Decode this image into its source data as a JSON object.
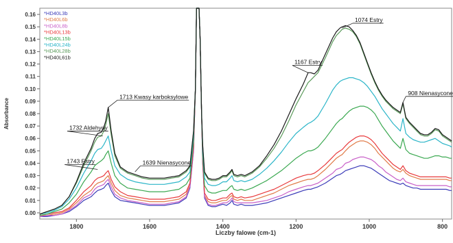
{
  "chart_data": {
    "type": "line",
    "xlabel": "Liczby falowe (cm-1)",
    "ylabel": "Absorbance",
    "xlim": [
      1900,
      775
    ],
    "ylim": [
      -0.005,
      0.165
    ],
    "x_reversed": true,
    "grid": false,
    "legend_position": "top-left",
    "x_ticks": [
      1800,
      1600,
      1400,
      1200,
      1000,
      800
    ],
    "y_ticks": [
      0.0,
      0.01,
      0.02,
      0.03,
      0.04,
      0.05,
      0.06,
      0.07,
      0.08,
      0.09,
      0.1,
      0.11,
      0.12,
      0.13,
      0.14,
      0.15,
      0.16
    ],
    "y_tick_labels": [
      "0.00",
      "0.01",
      "0.02",
      "0.03",
      "0.04",
      "0.05",
      "0.06",
      "0.07",
      "0.08",
      "0.09",
      "0.10",
      "0.11",
      "0.12",
      "0.13",
      "0.14",
      "0.15",
      "0.16"
    ],
    "annotations": [
      {
        "text": "1713 Kwasy karboksylowe",
        "x": 1713,
        "y": 0.085,
        "ty": 0.092,
        "tx": 1688
      },
      {
        "text": "1732 Aldehydy",
        "x": 1728,
        "y": 0.062,
        "ty": 0.067,
        "tx": 1825
      },
      {
        "text": "1743 Estry",
        "x": 1742,
        "y": 0.035,
        "ty": 0.04,
        "tx": 1832
      },
      {
        "text": "1639 Nienasycone",
        "x": 1640,
        "y": 0.033,
        "ty": 0.039,
        "tx": 1625
      },
      {
        "text": "1167 Estry",
        "x": 1167,
        "y": 0.113,
        "ty": 0.12,
        "tx": 1210
      },
      {
        "text": "1074 Estry",
        "x": 1074,
        "y": 0.149,
        "ty": 0.154,
        "tx": 1045
      },
      {
        "text": "908 Nienasycone",
        "x": 908,
        "y": 0.089,
        "ty": 0.095,
        "tx": 900
      }
    ],
    "x": [
      1900,
      1880,
      1860,
      1840,
      1820,
      1800,
      1780,
      1760,
      1750,
      1742,
      1732,
      1725,
      1720,
      1713,
      1705,
      1695,
      1680,
      1660,
      1640,
      1620,
      1600,
      1580,
      1560,
      1540,
      1520,
      1500,
      1490,
      1480,
      1475,
      1472,
      1468,
      1465,
      1462,
      1458,
      1455,
      1450,
      1440,
      1430,
      1420,
      1410,
      1400,
      1390,
      1380,
      1375,
      1370,
      1360,
      1350,
      1340,
      1320,
      1300,
      1280,
      1260,
      1240,
      1220,
      1200,
      1180,
      1167,
      1160,
      1150,
      1140,
      1120,
      1100,
      1090,
      1080,
      1074,
      1065,
      1055,
      1045,
      1035,
      1025,
      1015,
      1005,
      995,
      985,
      975,
      965,
      955,
      945,
      935,
      925,
      915,
      908,
      900,
      890,
      880,
      870,
      860,
      850,
      840,
      830,
      820,
      810,
      800,
      790,
      780,
      775
    ],
    "series": [
      {
        "name": "HD40L3b",
        "color": "#3b3bb8",
        "values": [
          -0.003,
          -0.003,
          -0.002,
          -0.001,
          0.001,
          0.005,
          0.01,
          0.013,
          0.016,
          0.018,
          0.019,
          0.02,
          0.022,
          0.024,
          0.018,
          0.013,
          0.01,
          0.009,
          0.008,
          0.007,
          0.006,
          0.006,
          0.006,
          0.007,
          0.008,
          0.012,
          0.02,
          0.05,
          0.1,
          0.17,
          0.17,
          0.17,
          0.14,
          0.08,
          0.04,
          0.012,
          0.006,
          0.005,
          0.005,
          0.006,
          0.007,
          0.006,
          0.008,
          0.01,
          0.007,
          0.006,
          0.007,
          0.006,
          0.006,
          0.007,
          0.008,
          0.01,
          0.012,
          0.014,
          0.016,
          0.018,
          0.019,
          0.019,
          0.02,
          0.021,
          0.024,
          0.028,
          0.03,
          0.031,
          0.032,
          0.034,
          0.035,
          0.036,
          0.037,
          0.038,
          0.038,
          0.037,
          0.036,
          0.034,
          0.032,
          0.03,
          0.028,
          0.026,
          0.025,
          0.024,
          0.023,
          0.024,
          0.022,
          0.021,
          0.02,
          0.02,
          0.019,
          0.019,
          0.019,
          0.019,
          0.019,
          0.019,
          0.019,
          0.019,
          0.018,
          0.018
        ]
      },
      {
        "name": "HD40L6b",
        "color": "#e07b48",
        "values": [
          -0.002,
          -0.002,
          -0.001,
          0.0,
          0.003,
          0.008,
          0.014,
          0.018,
          0.022,
          0.024,
          0.025,
          0.026,
          0.028,
          0.03,
          0.024,
          0.018,
          0.014,
          0.012,
          0.011,
          0.01,
          0.009,
          0.009,
          0.009,
          0.01,
          0.011,
          0.015,
          0.022,
          0.052,
          0.1,
          0.17,
          0.17,
          0.17,
          0.14,
          0.08,
          0.042,
          0.014,
          0.009,
          0.008,
          0.008,
          0.009,
          0.01,
          0.01,
          0.013,
          0.014,
          0.011,
          0.01,
          0.011,
          0.01,
          0.01,
          0.012,
          0.014,
          0.016,
          0.019,
          0.022,
          0.024,
          0.026,
          0.027,
          0.027,
          0.028,
          0.03,
          0.035,
          0.041,
          0.044,
          0.046,
          0.047,
          0.05,
          0.053,
          0.055,
          0.057,
          0.058,
          0.058,
          0.057,
          0.055,
          0.052,
          0.048,
          0.045,
          0.042,
          0.039,
          0.036,
          0.034,
          0.033,
          0.035,
          0.032,
          0.03,
          0.029,
          0.028,
          0.027,
          0.027,
          0.027,
          0.027,
          0.027,
          0.027,
          0.027,
          0.027,
          0.026,
          0.026
        ]
      },
      {
        "name": "HD40L8b",
        "color": "#c85fc8",
        "values": [
          -0.003,
          -0.002,
          -0.002,
          -0.001,
          0.002,
          0.006,
          0.012,
          0.015,
          0.019,
          0.021,
          0.022,
          0.023,
          0.025,
          0.027,
          0.021,
          0.015,
          0.012,
          0.01,
          0.009,
          0.008,
          0.007,
          0.007,
          0.007,
          0.008,
          0.009,
          0.013,
          0.021,
          0.051,
          0.1,
          0.17,
          0.17,
          0.17,
          0.14,
          0.08,
          0.041,
          0.013,
          0.007,
          0.006,
          0.006,
          0.007,
          0.008,
          0.008,
          0.01,
          0.012,
          0.009,
          0.008,
          0.008,
          0.008,
          0.008,
          0.009,
          0.01,
          0.012,
          0.014,
          0.017,
          0.019,
          0.021,
          0.022,
          0.022,
          0.023,
          0.024,
          0.028,
          0.032,
          0.035,
          0.036,
          0.037,
          0.04,
          0.041,
          0.043,
          0.044,
          0.045,
          0.045,
          0.044,
          0.043,
          0.041,
          0.038,
          0.036,
          0.033,
          0.031,
          0.029,
          0.027,
          0.026,
          0.028,
          0.025,
          0.024,
          0.023,
          0.022,
          0.022,
          0.022,
          0.022,
          0.022,
          0.022,
          0.022,
          0.022,
          0.022,
          0.021,
          0.021
        ]
      },
      {
        "name": "HD40L13b",
        "color": "#e8383a",
        "values": [
          -0.002,
          -0.001,
          0.0,
          0.001,
          0.004,
          0.01,
          0.017,
          0.022,
          0.026,
          0.028,
          0.029,
          0.03,
          0.032,
          0.034,
          0.027,
          0.021,
          0.017,
          0.014,
          0.013,
          0.012,
          0.011,
          0.011,
          0.011,
          0.012,
          0.013,
          0.017,
          0.024,
          0.054,
          0.1,
          0.17,
          0.17,
          0.17,
          0.14,
          0.08,
          0.043,
          0.016,
          0.011,
          0.01,
          0.01,
          0.011,
          0.012,
          0.012,
          0.015,
          0.016,
          0.013,
          0.012,
          0.013,
          0.012,
          0.013,
          0.015,
          0.017,
          0.019,
          0.022,
          0.025,
          0.028,
          0.03,
          0.031,
          0.031,
          0.032,
          0.034,
          0.039,
          0.045,
          0.048,
          0.05,
          0.051,
          0.054,
          0.057,
          0.059,
          0.061,
          0.062,
          0.062,
          0.061,
          0.059,
          0.056,
          0.052,
          0.048,
          0.045,
          0.042,
          0.039,
          0.037,
          0.035,
          0.038,
          0.034,
          0.032,
          0.031,
          0.03,
          0.029,
          0.029,
          0.029,
          0.029,
          0.029,
          0.029,
          0.029,
          0.029,
          0.028,
          0.028
        ]
      },
      {
        "name": "HD40L15b",
        "color": "#3aa850",
        "values": [
          -0.002,
          -0.001,
          0.001,
          0.003,
          0.008,
          0.015,
          0.025,
          0.033,
          0.038,
          0.04,
          0.042,
          0.044,
          0.047,
          0.05,
          0.04,
          0.03,
          0.024,
          0.02,
          0.019,
          0.018,
          0.017,
          0.017,
          0.017,
          0.018,
          0.019,
          0.023,
          0.028,
          0.058,
          0.1,
          0.17,
          0.17,
          0.17,
          0.14,
          0.08,
          0.046,
          0.022,
          0.017,
          0.016,
          0.016,
          0.017,
          0.018,
          0.018,
          0.021,
          0.022,
          0.019,
          0.018,
          0.019,
          0.018,
          0.02,
          0.023,
          0.026,
          0.03,
          0.034,
          0.039,
          0.044,
          0.048,
          0.05,
          0.05,
          0.051,
          0.053,
          0.06,
          0.068,
          0.072,
          0.075,
          0.076,
          0.079,
          0.082,
          0.084,
          0.085,
          0.086,
          0.086,
          0.085,
          0.083,
          0.08,
          0.075,
          0.07,
          0.066,
          0.062,
          0.058,
          0.055,
          0.052,
          0.06,
          0.051,
          0.048,
          0.047,
          0.046,
          0.045,
          0.044,
          0.044,
          0.045,
          0.046,
          0.046,
          0.045,
          0.045,
          0.044,
          0.044
        ]
      },
      {
        "name": "HD40L24b",
        "color": "#2ab5c8",
        "values": [
          -0.001,
          0.0,
          0.002,
          0.005,
          0.011,
          0.02,
          0.032,
          0.042,
          0.048,
          0.051,
          0.052,
          0.055,
          0.058,
          0.062,
          0.05,
          0.038,
          0.031,
          0.027,
          0.025,
          0.024,
          0.023,
          0.023,
          0.023,
          0.024,
          0.025,
          0.029,
          0.033,
          0.062,
          0.1,
          0.17,
          0.17,
          0.17,
          0.14,
          0.08,
          0.05,
          0.028,
          0.023,
          0.022,
          0.022,
          0.023,
          0.025,
          0.025,
          0.028,
          0.03,
          0.026,
          0.025,
          0.026,
          0.025,
          0.027,
          0.031,
          0.036,
          0.042,
          0.049,
          0.057,
          0.064,
          0.069,
          0.072,
          0.073,
          0.075,
          0.078,
          0.088,
          0.099,
          0.103,
          0.106,
          0.107,
          0.108,
          0.109,
          0.109,
          0.108,
          0.107,
          0.105,
          0.102,
          0.098,
          0.094,
          0.089,
          0.084,
          0.08,
          0.076,
          0.072,
          0.069,
          0.066,
          0.076,
          0.064,
          0.061,
          0.059,
          0.058,
          0.057,
          0.057,
          0.058,
          0.059,
          0.06,
          0.058,
          0.056,
          0.055,
          0.054,
          0.053
        ]
      },
      {
        "name": "HD40L28b",
        "color": "#5a9a5a",
        "values": [
          -0.001,
          0.001,
          0.003,
          0.006,
          0.013,
          0.024,
          0.038,
          0.05,
          0.057,
          0.061,
          0.062,
          0.066,
          0.071,
          0.08,
          0.063,
          0.046,
          0.036,
          0.032,
          0.03,
          0.028,
          0.027,
          0.027,
          0.027,
          0.028,
          0.029,
          0.033,
          0.037,
          0.065,
          0.1,
          0.17,
          0.17,
          0.17,
          0.14,
          0.08,
          0.054,
          0.032,
          0.027,
          0.026,
          0.026,
          0.027,
          0.029,
          0.029,
          0.032,
          0.034,
          0.03,
          0.029,
          0.03,
          0.029,
          0.032,
          0.037,
          0.044,
          0.052,
          0.062,
          0.074,
          0.087,
          0.098,
          0.105,
          0.107,
          0.11,
          0.113,
          0.125,
          0.138,
          0.143,
          0.146,
          0.148,
          0.149,
          0.148,
          0.146,
          0.142,
          0.136,
          0.128,
          0.12,
          0.112,
          0.105,
          0.099,
          0.094,
          0.09,
          0.087,
          0.084,
          0.082,
          0.08,
          0.088,
          0.076,
          0.072,
          0.069,
          0.066,
          0.063,
          0.062,
          0.062,
          0.064,
          0.067,
          0.066,
          0.062,
          0.06,
          0.058,
          0.057
        ]
      },
      {
        "name": "HD40L61b",
        "color": "#1a1a1a",
        "values": [
          -0.001,
          0.001,
          0.003,
          0.006,
          0.013,
          0.025,
          0.04,
          0.052,
          0.06,
          0.064,
          0.065,
          0.069,
          0.074,
          0.085,
          0.066,
          0.048,
          0.037,
          0.033,
          0.031,
          0.029,
          0.028,
          0.028,
          0.028,
          0.029,
          0.03,
          0.034,
          0.038,
          0.066,
          0.1,
          0.17,
          0.17,
          0.17,
          0.14,
          0.08,
          0.055,
          0.033,
          0.028,
          0.027,
          0.027,
          0.028,
          0.03,
          0.03,
          0.033,
          0.035,
          0.031,
          0.03,
          0.031,
          0.03,
          0.033,
          0.038,
          0.046,
          0.055,
          0.066,
          0.079,
          0.092,
          0.104,
          0.113,
          0.113,
          0.112,
          0.115,
          0.128,
          0.141,
          0.146,
          0.149,
          0.15,
          0.151,
          0.15,
          0.147,
          0.143,
          0.137,
          0.129,
          0.121,
          0.113,
          0.106,
          0.1,
          0.095,
          0.091,
          0.088,
          0.085,
          0.083,
          0.081,
          0.089,
          0.077,
          0.073,
          0.07,
          0.067,
          0.064,
          0.063,
          0.063,
          0.065,
          0.068,
          0.067,
          0.063,
          0.061,
          0.059,
          0.058
        ]
      }
    ]
  }
}
